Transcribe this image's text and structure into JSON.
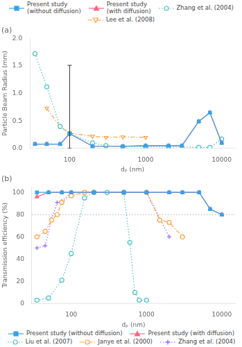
{
  "chart_data": [
    {
      "type": "line",
      "title": "(a)",
      "xlabel": "dₚ (nm)",
      "ylabel": "Particle Beam Radius (mm)",
      "log": "x",
      "grid": false,
      "legend": "top",
      "xlim": [
        30,
        15000
      ],
      "xticks": [
        100,
        1000,
        10000
      ],
      "ylim": [
        0,
        2.0
      ],
      "yticks": [
        {
          "value": 0,
          "label": "0.0"
        },
        0.5,
        {
          "value": 1.0,
          "label": "1.0"
        },
        1.5,
        {
          "value": 2.0,
          "label": "2.0"
        }
      ],
      "series": [
        {
          "name": "Present study\n(without diffusion)",
          "marker": "square",
          "line_style": "solid",
          "x": [
            35,
            50,
            75,
            100,
            200,
            500,
            1000,
            2000,
            3000,
            5000,
            7000,
            10000
          ],
          "values": [
            0.08,
            0.08,
            0.08,
            0.27,
            0.04,
            0.04,
            0.05,
            0.05,
            0.05,
            0.49,
            0.65,
            0.1
          ],
          "yerr_minus": [
            null,
            null,
            null,
            0.27,
            null,
            null,
            null,
            null,
            null,
            null,
            null,
            null
          ],
          "yerr_plus": [
            null,
            null,
            null,
            1.24,
            null,
            null,
            null,
            null,
            null,
            null,
            null,
            null
          ]
        },
        {
          "name": "Present study\n(with diffusion)",
          "marker": "triangle",
          "line_style": "solid",
          "x": [
            35,
            50,
            75,
            100,
            200,
            500,
            1000,
            2000,
            3000,
            5000,
            7000,
            10000
          ],
          "values": [
            0.08,
            0.08,
            0.08,
            0.27,
            0.04,
            0.04,
            0.05,
            0.05,
            0.05,
            0.49,
            0.65,
            0.1
          ]
        },
        {
          "name": "Zhang et al. (2004)",
          "marker": "circle-open",
          "line_style": "dotted",
          "x": [
            35,
            50,
            75,
            100,
            200,
            300,
            500,
            1000,
            2000,
            5000,
            7000,
            10000
          ],
          "values": [
            1.72,
            1.12,
            0.4,
            0.27,
            0.1,
            0.05,
            0.03,
            0.03,
            0.03,
            0.02,
            0.02,
            0.17
          ]
        },
        {
          "name": "Lee et al. (2008)",
          "marker": "triangle-down-open",
          "line_style": "dashdot",
          "x": [
            50,
            75,
            100,
            200,
            300,
            500,
            1000
          ],
          "values": [
            0.73,
            0.4,
            0.28,
            0.22,
            0.2,
            0.21,
            0.2
          ]
        }
      ]
    },
    {
      "type": "line",
      "title": "(b)",
      "xlabel": "dₚ (nm)",
      "ylabel": "Transmission efficiency (%)",
      "log": "x",
      "grid": false,
      "legend": "bottom",
      "xlim": [
        30,
        15000
      ],
      "xticks": [
        100,
        1000,
        10000
      ],
      "ylim": [
        0,
        105
      ],
      "yticks": [
        0,
        20,
        40,
        60,
        80,
        100
      ],
      "hline": 80,
      "series": [
        {
          "name": "Present study (without diffusion)",
          "marker": "square",
          "line_style": "solid",
          "x": [
            35,
            50,
            75,
            100,
            200,
            500,
            1000,
            2000,
            3000,
            5000,
            7000,
            10000
          ],
          "values": [
            100,
            100,
            100,
            100,
            100,
            100,
            100,
            100,
            100,
            100,
            85,
            80
          ]
        },
        {
          "name": "Present study (with diffusion)",
          "marker": "triangle",
          "line_style": "solid",
          "x": [
            35,
            50,
            75,
            100,
            200,
            500,
            1000,
            2000,
            3000,
            5000,
            7000,
            10000
          ],
          "values": [
            96,
            100,
            100,
            100,
            100,
            100,
            100,
            100,
            100,
            100,
            85,
            80
          ]
        },
        {
          "name": "Liu et al. (2007)",
          "marker": "circle-open",
          "line_style": "dotted",
          "x": [
            35,
            50,
            75,
            100,
            150,
            200,
            300,
            500,
            600,
            700,
            800,
            1000
          ],
          "values": [
            3,
            5,
            21,
            45,
            95,
            100,
            100,
            100,
            55,
            10,
            3,
            3
          ]
        },
        {
          "name": "Janye et al. (2000)",
          "marker": "circle-open",
          "line_style": "dashdot",
          "x": [
            35,
            45,
            55,
            65,
            75,
            100,
            150,
            200,
            500,
            1000,
            1500,
            2000,
            3000
          ],
          "values": [
            60,
            65,
            75,
            80,
            91,
            97,
            100,
            100,
            100,
            100,
            75,
            73,
            60
          ]
        },
        {
          "name": "Zhang et al. (2004)",
          "marker": "plus-open",
          "line_style": "dotted",
          "x": [
            35,
            45,
            55,
            65,
            75,
            100,
            200,
            500,
            1000,
            2000
          ],
          "values": [
            50,
            52,
            76,
            91,
            92,
            100,
            100,
            100,
            100,
            60
          ]
        }
      ]
    }
  ]
}
